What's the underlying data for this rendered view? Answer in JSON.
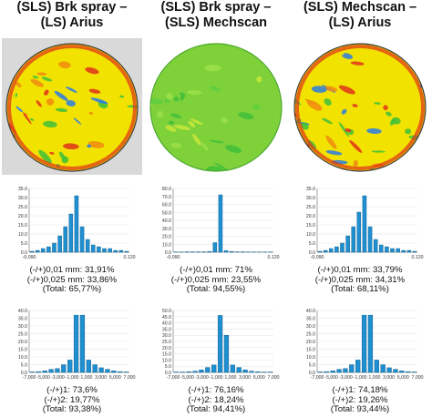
{
  "colors": {
    "bar": "#1f8fd0",
    "bar_edge": "#0b5a8a",
    "axis": "#8a8a8a",
    "grid": "#e2e2e2",
    "scan_bg": "#d9d9d9",
    "scan_green": "#3fbf3a",
    "scan_yellow": "#f2e200",
    "scan_red": "#e0321a",
    "scan_blue": "#2c7be5"
  },
  "columns": [
    {
      "title_line1": "(SLS) Brk spray –",
      "title_line2": "(LS) Arius",
      "stats1": [
        "(-/+)0,01 mm: 31,91%",
        "(-/+)0,025 mm: 33,86%",
        "(Total: 65,77%)"
      ],
      "stats2": [
        "(-/+)1: 73,6%",
        "(-/+)2: 19,77%",
        "(Total: 93,38%)"
      ]
    },
    {
      "title_line1": "(SLS) Brk spray –",
      "title_line2": "(SLS) Mechscan",
      "stats1": [
        "(-/+)0,01 mm: 71%",
        "(-/+)0,025 mm: 23,55%",
        "(Total: 94,55%)"
      ],
      "stats2": [
        "(-/+)1: 76,16%",
        "(-/+)2: 18,24%",
        "(Total: 94,41%)"
      ]
    },
    {
      "title_line1": "(SLS) Mechscan –",
      "title_line2": "(LS) Arius",
      "stats1": [
        "(-/+)0,01 mm: 33,79%",
        "(-/+)0,025 mm: 34,31%",
        "(Total: 68,11%)"
      ],
      "stats2": [
        "(-/+)1: 74,18%",
        "(-/+)2: 19,26%",
        "(Total: 93,44%)"
      ]
    }
  ],
  "chart_data": [
    {
      "type": "bar",
      "ylim": [
        0,
        35
      ],
      "yticks": [
        "0.0",
        "5.0",
        "10.0",
        "15.0",
        "20.0",
        "25.0",
        "30.0",
        "35.0"
      ],
      "xticks": [
        "-0.090",
        "0.120"
      ],
      "values": [
        0.5,
        1,
        2,
        3,
        5,
        9,
        14,
        21,
        31,
        14,
        7,
        4,
        3,
        2,
        2,
        1,
        1,
        0.5
      ]
    },
    {
      "type": "bar",
      "ylim": [
        0,
        80
      ],
      "yticks": [
        "0.0",
        "10.0",
        "20.0",
        "30.0",
        "40.0",
        "50.0",
        "60.0",
        "70.0",
        "80.0"
      ],
      "xticks": [
        "-0.090",
        "0.120"
      ],
      "values": [
        0.3,
        0.3,
        0.5,
        0.5,
        0.5,
        0.5,
        1,
        12,
        72,
        2,
        1,
        0.5,
        0.5,
        0.3,
        0.3,
        0.3,
        0.3,
        0.3
      ]
    },
    {
      "type": "bar",
      "ylim": [
        0,
        35
      ],
      "yticks": [
        "0.0",
        "5.0",
        "10.0",
        "15.0",
        "20.0",
        "25.0",
        "30.0",
        "35.0"
      ],
      "xticks": [
        "-0.090",
        "0.120"
      ],
      "values": [
        0.5,
        1,
        2,
        3,
        5,
        9,
        14,
        22,
        31,
        14,
        7,
        4,
        3,
        2,
        2,
        1,
        1,
        0.5
      ]
    },
    {
      "type": "bar",
      "ylim": [
        0,
        40
      ],
      "yticks": [
        "0.0",
        "5.0",
        "10.0",
        "15.0",
        "20.0",
        "25.0",
        "30.0",
        "35.0",
        "40.0"
      ],
      "xticks": [
        "-7,000",
        "-5,000",
        "-3,000",
        "-1,000",
        "1,000",
        "3,000",
        "5,000",
        "7,000"
      ],
      "values": [
        0.3,
        0.5,
        1,
        2,
        2.5,
        5,
        8,
        37,
        37,
        8,
        5,
        3,
        2,
        1,
        0.5,
        0.3
      ]
    },
    {
      "type": "bar",
      "ylim": [
        0,
        50
      ],
      "yticks": [
        "0.0",
        "5.0",
        "10.0",
        "15.0",
        "20.0",
        "25.0",
        "30.0",
        "35.0",
        "40.0",
        "45.0",
        "50.0"
      ],
      "xticks": [
        "-7,000",
        "-5,000",
        "-3,000",
        "-1,000",
        "1,000",
        "3,000",
        "5,000",
        "7,000"
      ],
      "values": [
        0.3,
        0.3,
        0.5,
        1,
        2,
        4,
        6,
        46,
        30,
        6,
        4,
        2,
        1,
        0.5,
        0.3,
        0.3
      ]
    },
    {
      "type": "bar",
      "ylim": [
        0,
        40
      ],
      "yticks": [
        "0.0",
        "5.0",
        "10.0",
        "15.0",
        "20.0",
        "25.0",
        "30.0",
        "35.0",
        "40.0"
      ],
      "xticks": [
        "-7,000",
        "-5,000",
        "-3,000",
        "-1,000",
        "1,000",
        "3,000",
        "5,000",
        "7,000"
      ],
      "values": [
        0.3,
        0.5,
        1,
        2,
        2.5,
        5,
        8,
        37,
        37,
        8,
        5,
        3,
        2,
        1,
        0.5,
        0.3
      ]
    }
  ]
}
